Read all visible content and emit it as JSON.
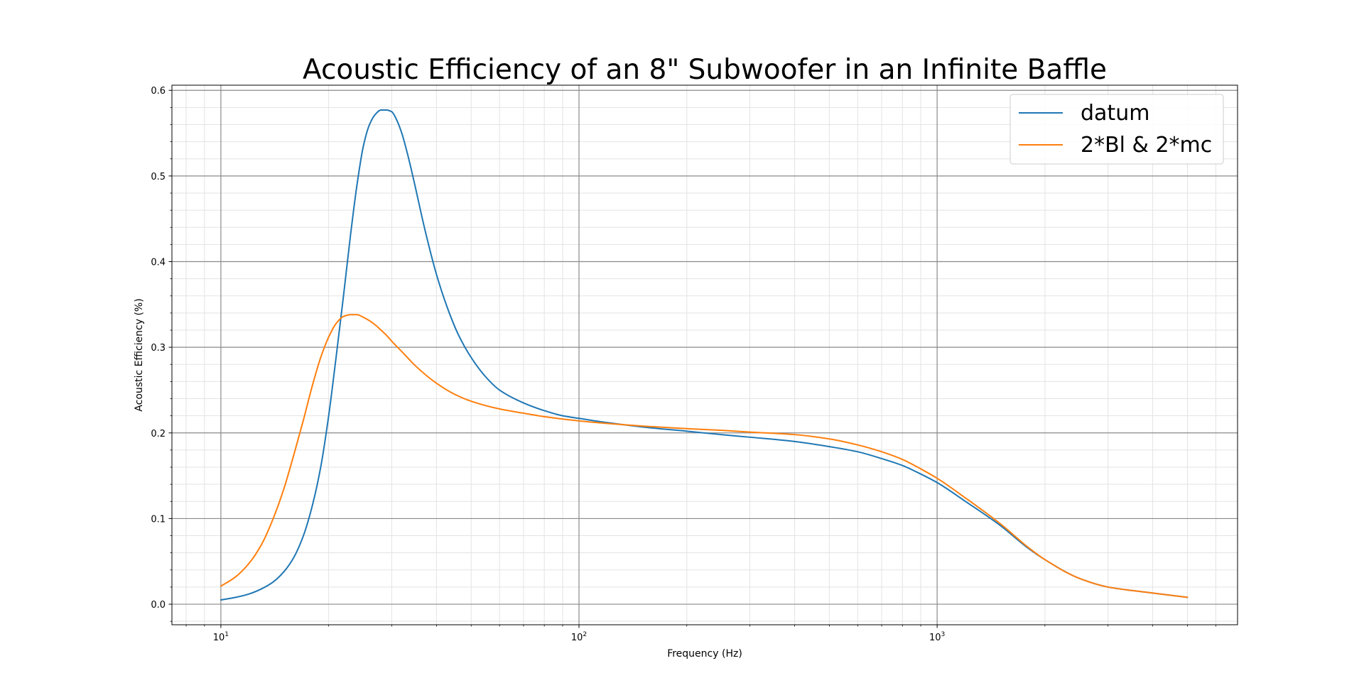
{
  "chart_data": {
    "type": "line",
    "title": "Acoustic Efficiency of an 8\" Subwoofer in an Infinite Baffle",
    "xlabel": "Frequency (Hz)",
    "ylabel": "Acoustic Efficiency (%)",
    "xscale": "log",
    "xlim": [
      7.3,
      6900
    ],
    "ylim": [
      -0.024,
      0.606
    ],
    "x_ticks": [
      {
        "value": 10,
        "base": "10",
        "exp": "1"
      },
      {
        "value": 100,
        "base": "10",
        "exp": "2"
      },
      {
        "value": 1000,
        "base": "10",
        "exp": "3"
      }
    ],
    "y_ticks": [
      0.0,
      0.1,
      0.2,
      0.3,
      0.4,
      0.5,
      0.6
    ],
    "y_tick_labels": [
      "0.0",
      "0.1",
      "0.2",
      "0.3",
      "0.4",
      "0.5",
      "0.6"
    ],
    "grid": {
      "major": true,
      "minor": true
    },
    "legend_position": "top-right",
    "series": [
      {
        "name": "datum",
        "color": "#1f77b4",
        "x": [
          10,
          11,
          12,
          13,
          14,
          15,
          16,
          17,
          18,
          19,
          20,
          21,
          22,
          23,
          24,
          25,
          26,
          27,
          28,
          29,
          30,
          31,
          32,
          33,
          34,
          35,
          37,
          40,
          43,
          46,
          50,
          55,
          60,
          70,
          80,
          90,
          100,
          120,
          150,
          200,
          250,
          300,
          400,
          500,
          600,
          700,
          800,
          900,
          1000,
          1200,
          1500,
          1800,
          2000,
          2500,
          3000,
          3500,
          4000,
          5000
        ],
        "y": [
          0.005,
          0.008,
          0.012,
          0.018,
          0.026,
          0.038,
          0.055,
          0.08,
          0.115,
          0.16,
          0.22,
          0.29,
          0.36,
          0.43,
          0.49,
          0.535,
          0.56,
          0.572,
          0.577,
          0.577,
          0.575,
          0.565,
          0.55,
          0.53,
          0.508,
          0.485,
          0.44,
          0.385,
          0.345,
          0.315,
          0.288,
          0.265,
          0.25,
          0.235,
          0.226,
          0.22,
          0.217,
          0.212,
          0.207,
          0.202,
          0.198,
          0.195,
          0.19,
          0.184,
          0.178,
          0.17,
          0.162,
          0.152,
          0.142,
          0.12,
          0.092,
          0.065,
          0.052,
          0.03,
          0.02,
          0.016,
          0.013,
          0.008
        ]
      },
      {
        "name": "2*Bl & 2*mc",
        "color": "#ff7f0e",
        "x": [
          10,
          11,
          12,
          13,
          14,
          15,
          16,
          17,
          18,
          19,
          20,
          21,
          22,
          23,
          24,
          25,
          26,
          27,
          28,
          29,
          30,
          32,
          35,
          40,
          45,
          50,
          60,
          70,
          80,
          100,
          120,
          150,
          200,
          250,
          300,
          400,
          500,
          600,
          700,
          800,
          900,
          1000,
          1200,
          1500,
          1800,
          2000,
          2500,
          3000,
          3500,
          4000,
          5000
        ],
        "y": [
          0.021,
          0.032,
          0.048,
          0.07,
          0.1,
          0.135,
          0.175,
          0.215,
          0.255,
          0.288,
          0.312,
          0.328,
          0.336,
          0.338,
          0.338,
          0.335,
          0.331,
          0.326,
          0.32,
          0.314,
          0.307,
          0.295,
          0.278,
          0.258,
          0.245,
          0.237,
          0.228,
          0.223,
          0.219,
          0.214,
          0.211,
          0.208,
          0.205,
          0.203,
          0.201,
          0.198,
          0.193,
          0.186,
          0.178,
          0.169,
          0.158,
          0.147,
          0.124,
          0.094,
          0.066,
          0.052,
          0.03,
          0.02,
          0.016,
          0.013,
          0.008
        ]
      }
    ]
  }
}
